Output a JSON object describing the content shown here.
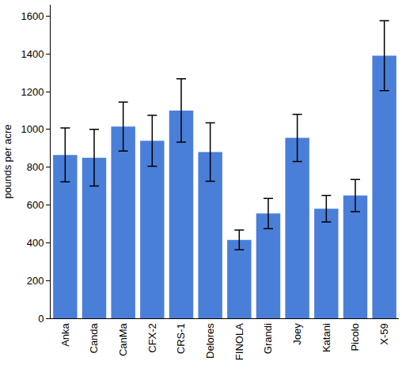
{
  "chart_data": {
    "type": "bar",
    "y_label": "pounds per acre",
    "categories": [
      "Anka",
      "Canda",
      "CanMa",
      "CFX-2",
      "CRS-1",
      "Delores",
      "FINOLA",
      "Grandi",
      "Joey",
      "Katani",
      "Picolo",
      "X-59"
    ],
    "values": [
      865,
      850,
      1015,
      940,
      1100,
      880,
      415,
      555,
      955,
      580,
      650,
      1390
    ],
    "errors": [
      143,
      150,
      130,
      135,
      168,
      155,
      52,
      80,
      125,
      70,
      85,
      185
    ],
    "color": "#4a7fd9",
    "ylim": [
      0,
      1660
    ],
    "yticks": [
      0,
      200,
      400,
      600,
      800,
      1000,
      1200,
      1400,
      1600
    ],
    "grid": false
  }
}
